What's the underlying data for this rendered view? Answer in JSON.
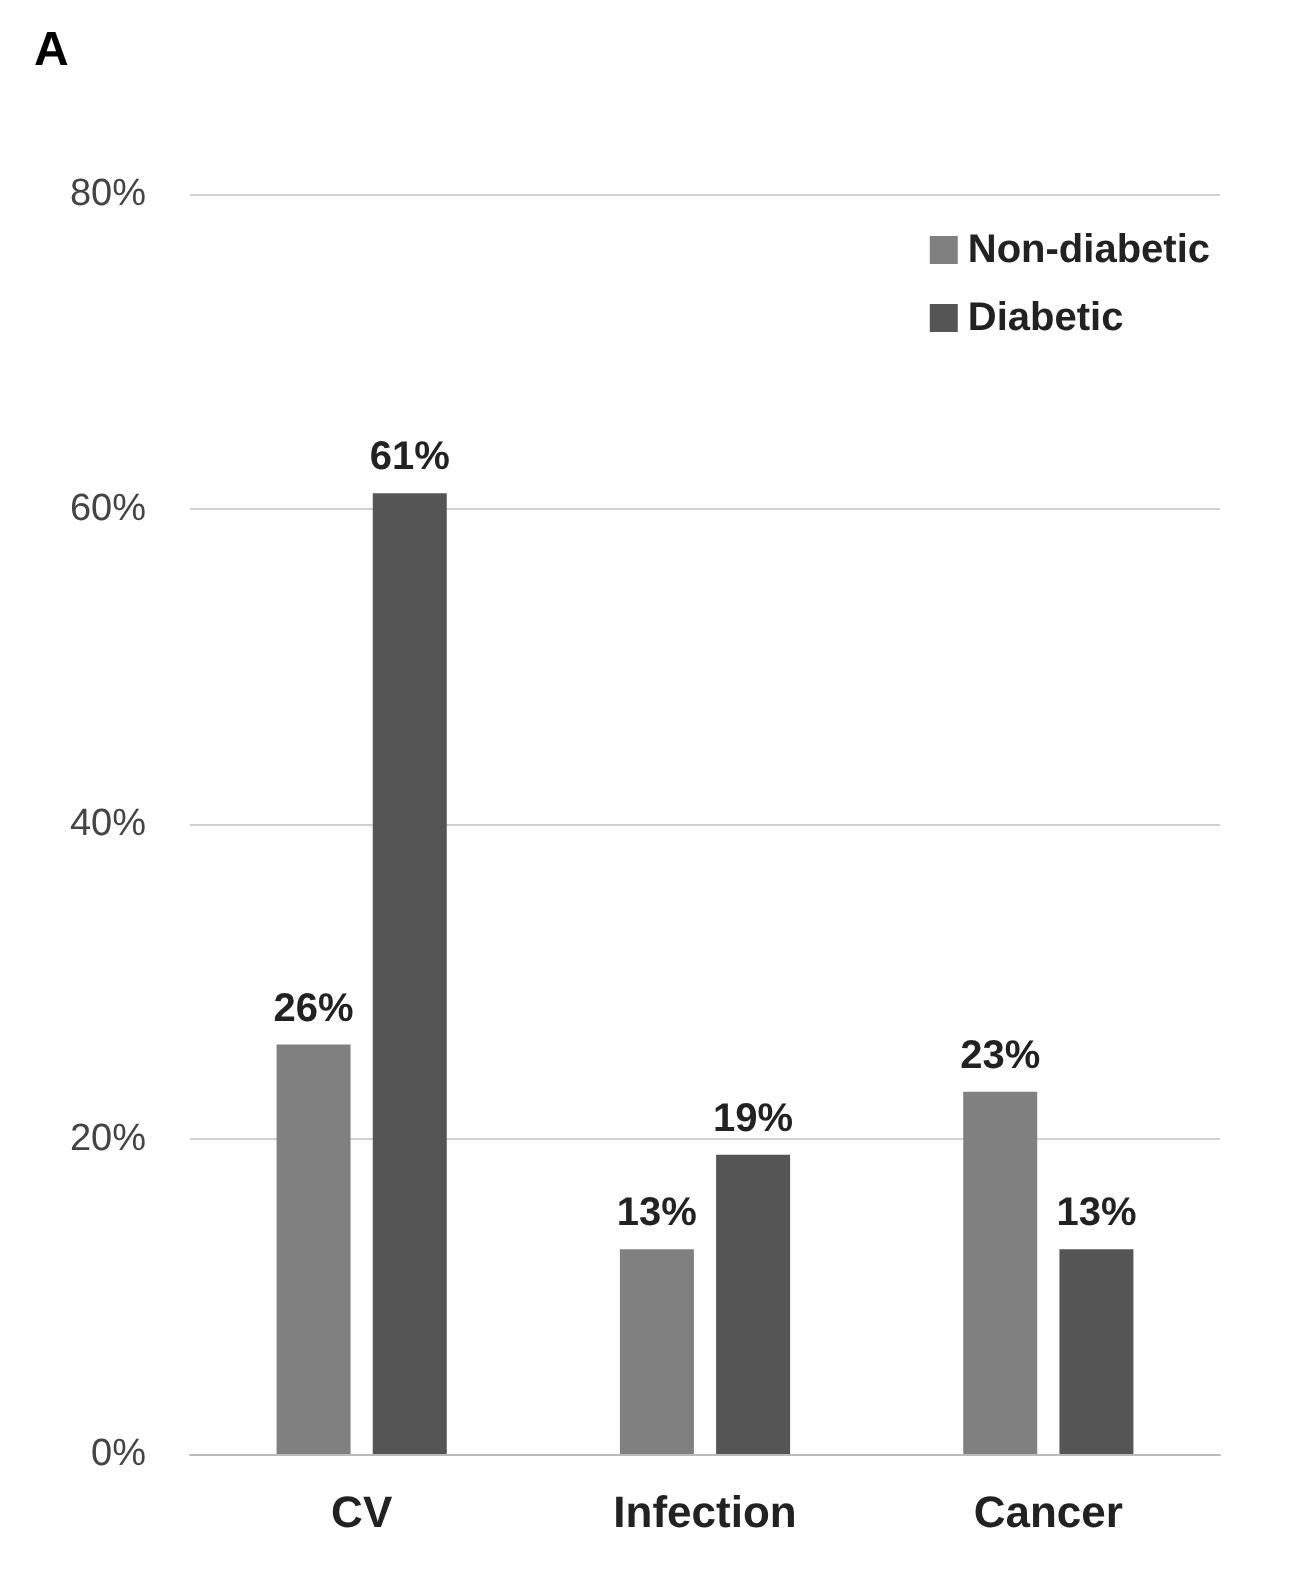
{
  "chart_data": {
    "type": "bar",
    "title": "A",
    "categories": [
      "CV",
      "Infection",
      "Cancer"
    ],
    "series": [
      {
        "name": "Non-diabetic",
        "color": "#808080",
        "values": [
          26,
          13,
          23
        ],
        "value_labels": [
          "26%",
          "13%",
          "23%"
        ]
      },
      {
        "name": "Diabetic",
        "color": "#555555",
        "values": [
          61,
          19,
          13
        ],
        "value_labels": [
          "61%",
          "19%",
          "13%"
        ]
      }
    ],
    "ylim": [
      0,
      80
    ],
    "yticks": [
      {
        "value": 0,
        "label": "0%"
      },
      {
        "value": 20,
        "label": "20%"
      },
      {
        "value": 40,
        "label": "40%"
      },
      {
        "value": 60,
        "label": "60%"
      },
      {
        "value": 80,
        "label": "80%"
      }
    ],
    "grid": "y",
    "legend": "top right"
  }
}
